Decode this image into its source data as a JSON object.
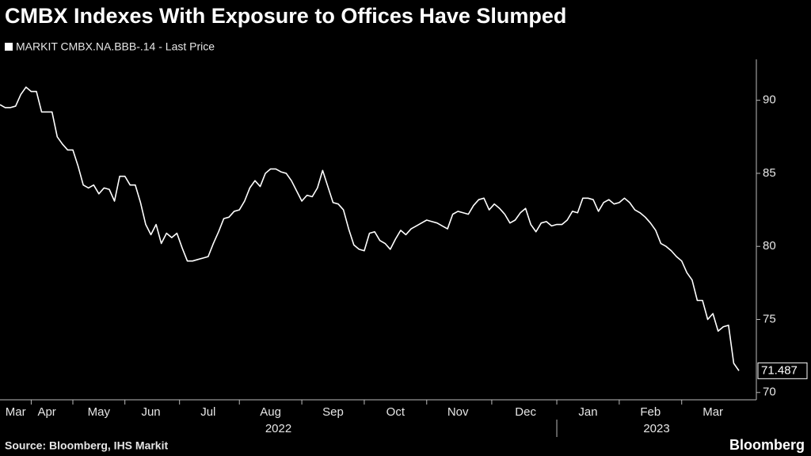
{
  "chart_data": {
    "type": "line",
    "title": "CMBX Indexes With Exposure to Offices Have Slumped",
    "source": "Source: Bloomberg, IHS Markit",
    "brand": "Bloomberg",
    "year_labels": [
      "2022",
      "2023"
    ],
    "categories": [
      null,
      null,
      null,
      "Mar",
      null,
      null,
      null,
      null,
      null,
      "Apr",
      null,
      null,
      null,
      null,
      null,
      null,
      null,
      null,
      null,
      "May",
      null,
      null,
      null,
      null,
      null,
      null,
      null,
      null,
      null,
      "Jun",
      null,
      null,
      null,
      null,
      null,
      null,
      null,
      null,
      null,
      null,
      "Jul",
      null,
      null,
      null,
      null,
      null,
      null,
      null,
      null,
      null,
      null,
      null,
      "Aug",
      null,
      null,
      null,
      null,
      null,
      null,
      null,
      null,
      null,
      null,
      null,
      "Sep",
      null,
      null,
      null,
      null,
      null,
      null,
      null,
      null,
      null,
      null,
      null,
      "Oct",
      null,
      null,
      null,
      null,
      null,
      null,
      null,
      null,
      null,
      null,
      null,
      "Nov",
      null,
      null,
      null,
      null,
      null,
      null,
      null,
      null,
      null,
      null,
      null,
      null,
      "Dec",
      null,
      null,
      null,
      null,
      null,
      null,
      null,
      null,
      null,
      null,
      null,
      "Jan",
      null,
      null,
      null,
      null,
      null,
      null,
      null,
      null,
      null,
      null,
      null,
      "Feb",
      null,
      null,
      null,
      null,
      null,
      null,
      null,
      null,
      null,
      null,
      null,
      "Mar",
      null,
      null,
      null,
      null,
      null
    ],
    "series": [
      {
        "name": "MARKIT CMBX.NA.BBB-.14 - Last Price",
        "color": "#ffffff",
        "values": [
          89.7,
          89.5,
          89.5,
          89.6,
          90.4,
          90.9,
          90.6,
          90.6,
          89.2,
          89.2,
          89.2,
          87.5,
          87.0,
          86.6,
          86.6,
          85.5,
          84.2,
          84.0,
          84.2,
          83.6,
          84.0,
          83.9,
          83.1,
          84.8,
          84.8,
          84.2,
          84.2,
          83.0,
          81.5,
          80.8,
          81.5,
          80.2,
          80.9,
          80.6,
          80.9,
          79.9,
          79.0,
          79.0,
          79.1,
          79.2,
          79.3,
          80.2,
          81.0,
          81.9,
          82.0,
          82.4,
          82.5,
          83.1,
          84.0,
          84.5,
          84.1,
          85.0,
          85.3,
          85.3,
          85.1,
          85.0,
          84.5,
          83.8,
          83.1,
          83.5,
          83.4,
          84.0,
          85.2,
          84.1,
          83.0,
          82.9,
          82.5,
          81.2,
          80.1,
          79.8,
          79.7,
          80.9,
          81.0,
          80.4,
          80.2,
          79.8,
          80.5,
          81.1,
          80.8,
          81.2,
          81.4,
          81.6,
          81.8,
          81.7,
          81.6,
          81.4,
          81.2,
          82.2,
          82.4,
          82.3,
          82.2,
          82.8,
          83.2,
          83.3,
          82.5,
          82.9,
          82.6,
          82.2,
          81.6,
          81.8,
          82.3,
          82.6,
          81.5,
          81.0,
          81.6,
          81.7,
          81.4,
          81.5,
          81.5,
          81.8,
          82.4,
          82.3,
          83.3,
          83.3,
          83.2,
          82.4,
          83.0,
          83.2,
          82.9,
          83.0,
          83.3,
          83.0,
          82.5,
          82.3,
          82.0,
          81.6,
          81.1,
          80.2,
          80.0,
          79.7,
          79.3,
          79.0,
          78.2,
          77.7,
          76.3,
          76.3,
          75.0,
          75.4,
          74.2,
          74.5,
          74.6,
          72.0,
          71.487
        ]
      }
    ],
    "ylim": [
      69.5,
      92.8
    ],
    "yticks": [
      70,
      75,
      80,
      85,
      90
    ],
    "legend": "top-left"
  }
}
